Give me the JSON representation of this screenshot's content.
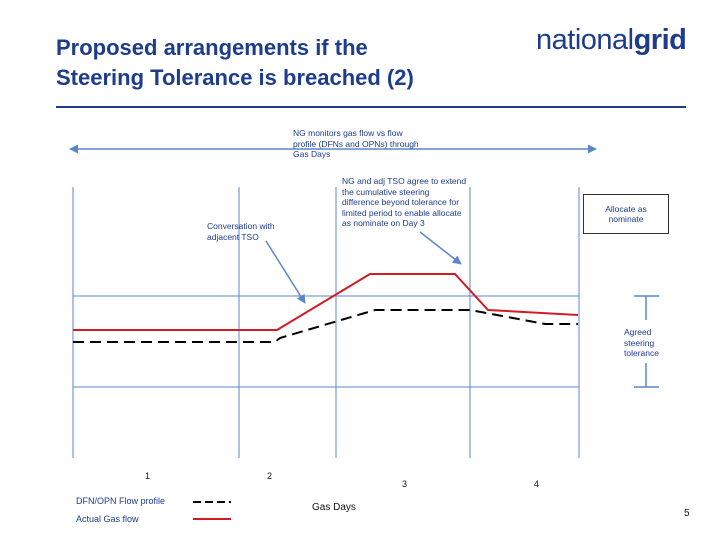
{
  "slide": {
    "title_line1": "Proposed arrangements if the",
    "title_line2": "Steering Tolerance is breached (2)",
    "logo_part1": "national",
    "logo_part2": "grid",
    "page_number": "5"
  },
  "annotations": {
    "monitor": [
      "NG monitors gas flow vs flow",
      "profile (DFNs and OPNs) through",
      "Gas Days"
    ],
    "agree": [
      "NG and adj TSO agree to extend",
      "the cumulative steering",
      "difference beyond tolerance for",
      "limited period to enable allocate",
      "as nominate on Day 3"
    ],
    "conversation": [
      "Conversation with",
      "adjacent TSO"
    ],
    "allocate": [
      "Allocate as",
      "nominate"
    ],
    "tolerance": [
      "Agreed",
      "steering",
      "tolerance"
    ]
  },
  "axis": {
    "xlabel": "Gas Days",
    "days": [
      "1",
      "2",
      "3",
      "4"
    ]
  },
  "legend": {
    "profile": "DFN/OPN Flow profile",
    "actual": "Actual Gas flow"
  },
  "colors": {
    "title": "#1e3c8c",
    "actual_flow": "#d01c24",
    "profile": "#000000",
    "gridline": "#5b86c8"
  }
}
